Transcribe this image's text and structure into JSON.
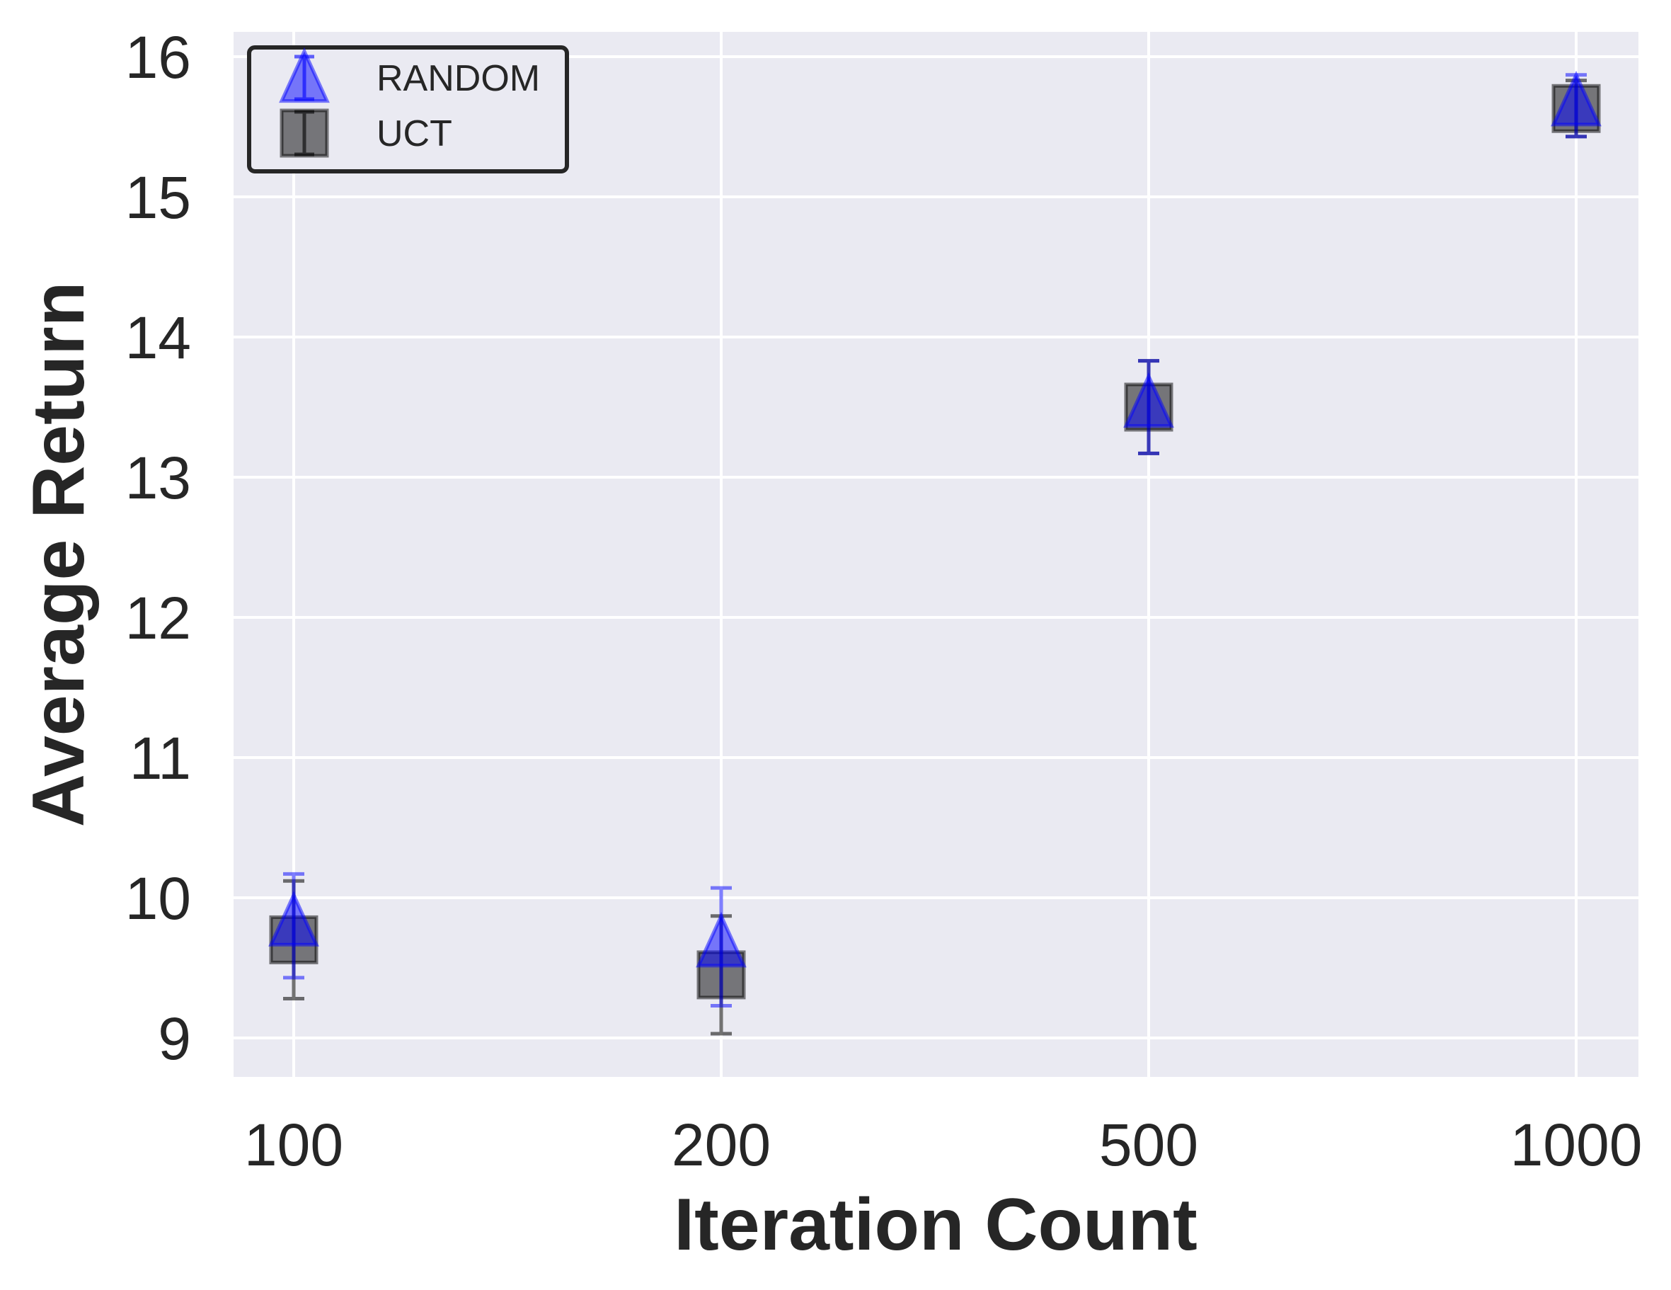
{
  "chart_data": {
    "type": "scatter",
    "title": "",
    "xlabel": "Iteration Count",
    "ylabel": "Average Return",
    "categories": [
      "100",
      "200",
      "500",
      "1000"
    ],
    "ylim": [
      8.7,
      16.2
    ],
    "yticks": [
      9,
      10,
      11,
      12,
      13,
      14,
      15,
      16
    ],
    "grid": true,
    "legend_position": "top-left",
    "series": [
      {
        "name": "UCT",
        "marker": "square",
        "color": "#000000",
        "values": [
          9.7,
          9.45,
          13.5,
          15.63
        ],
        "error": [
          0.42,
          0.42,
          0.33,
          0.2
        ]
      },
      {
        "name": "RANDOM",
        "marker": "triangle",
        "color": "#0000ff",
        "values": [
          9.8,
          9.65,
          13.5,
          15.65
        ],
        "error": [
          0.37,
          0.42,
          0.33,
          0.22
        ]
      }
    ],
    "colors": {
      "plot_background": "#eaeaf2",
      "grid": "#ffffff",
      "text": "#262626"
    }
  }
}
